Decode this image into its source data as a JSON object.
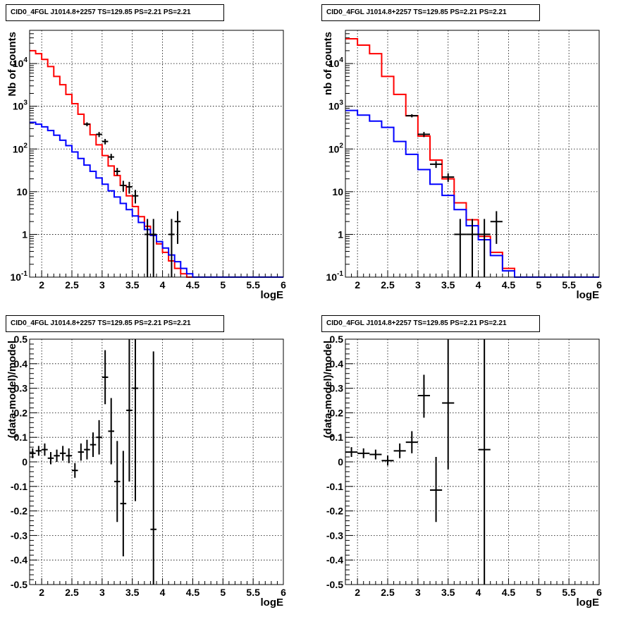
{
  "chart_data": [
    {
      "type": "line",
      "title": "CID0_4FGL J1014.8+2257 TS=129.85 PS=2.21 PS=2.21",
      "xlabel": "logE",
      "ylabel": "Nb of counts",
      "yscale": "log",
      "xlim": [
        1.8,
        6.0
      ],
      "ylim": [
        0.1,
        60000
      ],
      "x_ticks": [
        "2",
        "2.5",
        "3",
        "3.5",
        "4",
        "4.5",
        "5",
        "5.5",
        "6"
      ],
      "y_ticks": [
        "10^{-1}",
        "1",
        "10",
        "10^{2}",
        "10^{3}",
        "10^{4}"
      ],
      "grid": true,
      "bin_edges": [
        1.8,
        1.9,
        2.0,
        2.1,
        2.2,
        2.3,
        2.4,
        2.5,
        2.6,
        2.7,
        2.8,
        2.9,
        3.0,
        3.1,
        3.2,
        3.3,
        3.4,
        3.5,
        3.6,
        3.7,
        3.8,
        3.9,
        4.0,
        4.1,
        4.2,
        4.3,
        4.4,
        4.5,
        4.6,
        4.7,
        4.8,
        4.9,
        5.0,
        5.1,
        5.2,
        5.3,
        5.4,
        5.5,
        5.6,
        5.7,
        5.8,
        5.9,
        6.0
      ],
      "series": [
        {
          "color": "#ff0000",
          "style": "step",
          "values": [
            20000,
            17000,
            12500,
            8500,
            5000,
            3200,
            1900,
            1150,
            650,
            380,
            215,
            125,
            70,
            40,
            24,
            14,
            8,
            4.5,
            2.6,
            1.55,
            0.95,
            0.6,
            0.38,
            0.24,
            0.16,
            0.12,
            0.1,
            0.1,
            0.1,
            0.1,
            0.1,
            0.1,
            0.1,
            0.1,
            0.1,
            0.1,
            0.1,
            0.1,
            0.1,
            0.1,
            0.1,
            0.1
          ]
        },
        {
          "color": "#0000ff",
          "style": "step",
          "values": [
            420,
            380,
            330,
            270,
            210,
            160,
            120,
            85,
            60,
            42,
            30,
            21,
            15,
            10.5,
            7.5,
            5.3,
            3.8,
            2.7,
            1.9,
            1.3,
            0.95,
            0.68,
            0.48,
            0.33,
            0.23,
            0.16,
            0.12,
            0.1,
            0.1,
            0.1,
            0.1,
            0.1,
            0.1,
            0.1,
            0.1,
            0.1,
            0.1,
            0.1,
            0.1,
            0.1,
            0.1,
            0.1
          ]
        },
        {
          "color": "#000000",
          "style": "points",
          "points": [
            {
              "x": 2.75,
              "y": 380,
              "ylo": 340,
              "yhi": 420
            },
            {
              "x": 2.95,
              "y": 220,
              "ylo": 190,
              "yhi": 250
            },
            {
              "x": 3.05,
              "y": 150,
              "ylo": 128,
              "yhi": 172
            },
            {
              "x": 3.15,
              "y": 65,
              "ylo": 55,
              "yhi": 77
            },
            {
              "x": 3.25,
              "y": 30,
              "ylo": 24,
              "yhi": 36
            },
            {
              "x": 3.35,
              "y": 14,
              "ylo": 10,
              "yhi": 18
            },
            {
              "x": 3.45,
              "y": 13,
              "ylo": 9,
              "yhi": 17
            },
            {
              "x": 3.55,
              "y": 8,
              "ylo": 5.3,
              "yhi": 11
            },
            {
              "x": 3.75,
              "y": 1,
              "ylo": 0.1,
              "yhi": 2.3
            },
            {
              "x": 3.85,
              "y": 1,
              "ylo": 0.1,
              "yhi": 2.3
            },
            {
              "x": 4.15,
              "y": 1,
              "ylo": 0.1,
              "yhi": 2.3
            },
            {
              "x": 4.25,
              "y": 2,
              "ylo": 0.6,
              "yhi": 3.5
            }
          ]
        }
      ]
    },
    {
      "type": "line",
      "title": "CID0_4FGL J1014.8+2257 TS=129.85 PS=2.21 PS=2.21",
      "xlabel": "logE",
      "ylabel": "nb of counts",
      "yscale": "log",
      "xlim": [
        1.8,
        6.0
      ],
      "ylim": [
        0.1,
        60000
      ],
      "x_ticks": [
        "2",
        "2.5",
        "3",
        "3.5",
        "4",
        "4.5",
        "5",
        "5.5",
        "6"
      ],
      "y_ticks": [
        "10^{-1}",
        "1",
        "10",
        "10^{2}",
        "10^{3}",
        "10^{4}"
      ],
      "grid": true,
      "bin_edges": [
        1.8,
        2.0,
        2.2,
        2.4,
        2.6,
        2.8,
        3.0,
        3.2,
        3.4,
        3.6,
        3.8,
        4.0,
        4.2,
        4.4,
        4.6,
        4.8,
        5.0,
        5.2,
        5.4,
        5.6,
        5.8,
        6.0
      ],
      "series": [
        {
          "color": "#ff0000",
          "style": "step",
          "values": [
            38000,
            27000,
            17000,
            5000,
            1900,
            600,
            200,
            55,
            20,
            5.5,
            2.2,
            0.9,
            0.38,
            0.16,
            0.1,
            0.1,
            0.1,
            0.1,
            0.1,
            0.1,
            0.1
          ]
        },
        {
          "color": "#0000ff",
          "style": "step",
          "values": [
            800,
            620,
            450,
            320,
            150,
            75,
            33,
            15,
            8.2,
            3.8,
            1.6,
            0.75,
            0.32,
            0.14,
            0.1,
            0.1,
            0.1,
            0.1,
            0.1,
            0.1,
            0.1
          ]
        },
        {
          "color": "#000000",
          "style": "points",
          "points": [
            {
              "x": 2.9,
              "y": 600,
              "ylo": 550,
              "yhi": 650
            },
            {
              "x": 3.1,
              "y": 220,
              "ylo": 190,
              "yhi": 250
            },
            {
              "x": 3.3,
              "y": 44,
              "ylo": 36,
              "yhi": 52
            },
            {
              "x": 3.5,
              "y": 22,
              "ylo": 17,
              "yhi": 27
            },
            {
              "x": 3.7,
              "y": 1,
              "ylo": 0.1,
              "yhi": 2.3
            },
            {
              "x": 3.9,
              "y": 1,
              "ylo": 0.1,
              "yhi": 2.3
            },
            {
              "x": 4.1,
              "y": 1,
              "ylo": 0.1,
              "yhi": 2.3
            },
            {
              "x": 4.3,
              "y": 2,
              "ylo": 0.6,
              "yhi": 3.5
            }
          ]
        }
      ]
    },
    {
      "type": "scatter",
      "title": "CID0_4FGL J1014.8+2257 TS=129.85 PS=2.21 PS=2.21",
      "xlabel": "logE",
      "ylabel": "(data-model)/model",
      "yscale": "linear",
      "xlim": [
        1.8,
        6.0
      ],
      "ylim": [
        -0.5,
        0.5
      ],
      "x_ticks": [
        "2",
        "2.5",
        "3",
        "3.5",
        "4",
        "4.5",
        "5",
        "5.5",
        "6"
      ],
      "y_ticks": [
        "-0.5",
        "-0.4",
        "-0.3",
        "-0.2",
        "-0.1",
        "0",
        "0.1",
        "0.2",
        "0.3",
        "0.4",
        "0.5"
      ],
      "grid": true,
      "xerr": 0.05,
      "points": [
        {
          "x": 1.85,
          "y": 0.035,
          "ylo": 0.015,
          "yhi": 0.055
        },
        {
          "x": 1.95,
          "y": 0.045,
          "ylo": 0.025,
          "yhi": 0.065
        },
        {
          "x": 2.05,
          "y": 0.05,
          "ylo": 0.025,
          "yhi": 0.075
        },
        {
          "x": 2.15,
          "y": 0.015,
          "ylo": -0.01,
          "yhi": 0.04
        },
        {
          "x": 2.25,
          "y": 0.025,
          "ylo": 0.0,
          "yhi": 0.05
        },
        {
          "x": 2.35,
          "y": 0.035,
          "ylo": 0.005,
          "yhi": 0.065
        },
        {
          "x": 2.45,
          "y": 0.025,
          "ylo": -0.005,
          "yhi": 0.055
        },
        {
          "x": 2.55,
          "y": -0.035,
          "ylo": -0.065,
          "yhi": -0.005
        },
        {
          "x": 2.65,
          "y": 0.04,
          "ylo": 0.005,
          "yhi": 0.075
        },
        {
          "x": 2.75,
          "y": 0.05,
          "ylo": 0.01,
          "yhi": 0.09
        },
        {
          "x": 2.85,
          "y": 0.07,
          "ylo": 0.02,
          "yhi": 0.12
        },
        {
          "x": 2.95,
          "y": 0.1,
          "ylo": 0.03,
          "yhi": 0.17
        },
        {
          "x": 3.05,
          "y": 0.345,
          "ylo": 0.235,
          "yhi": 0.455
        },
        {
          "x": 3.15,
          "y": 0.125,
          "ylo": -0.01,
          "yhi": 0.26
        },
        {
          "x": 3.25,
          "y": -0.08,
          "ylo": -0.245,
          "yhi": 0.085
        },
        {
          "x": 3.35,
          "y": -0.17,
          "ylo": -0.385,
          "yhi": 0.045
        },
        {
          "x": 3.45,
          "y": 0.21,
          "ylo": -0.08,
          "yhi": 0.5
        },
        {
          "x": 3.55,
          "y": 0.3,
          "ylo": -0.16,
          "yhi": 0.5
        },
        {
          "x": 3.85,
          "y": -0.275,
          "ylo": -0.5,
          "yhi": 0.45
        }
      ]
    },
    {
      "type": "scatter",
      "title": "CID0_4FGL J1014.8+2257 TS=129.85 PS=2.21 PS=2.21",
      "xlabel": "logE",
      "ylabel": "(data-model)/model",
      "yscale": "linear",
      "xlim": [
        1.8,
        6.0
      ],
      "ylim": [
        -0.5,
        0.5
      ],
      "x_ticks": [
        "2",
        "2.5",
        "3",
        "3.5",
        "4",
        "4.5",
        "5",
        "5.5",
        "6"
      ],
      "y_ticks": [
        "-0.5",
        "-0.4",
        "-0.3",
        "-0.2",
        "-0.1",
        "0",
        "0.1",
        "0.2",
        "0.3",
        "0.4",
        "0.5"
      ],
      "grid": true,
      "xerr": 0.1,
      "points": [
        {
          "x": 1.9,
          "y": 0.04,
          "ylo": 0.02,
          "yhi": 0.06
        },
        {
          "x": 2.1,
          "y": 0.035,
          "ylo": 0.015,
          "yhi": 0.055
        },
        {
          "x": 2.3,
          "y": 0.03,
          "ylo": 0.01,
          "yhi": 0.05
        },
        {
          "x": 2.5,
          "y": 0.005,
          "ylo": -0.015,
          "yhi": 0.025
        },
        {
          "x": 2.7,
          "y": 0.045,
          "ylo": 0.015,
          "yhi": 0.075
        },
        {
          "x": 2.9,
          "y": 0.08,
          "ylo": 0.035,
          "yhi": 0.125
        },
        {
          "x": 3.1,
          "y": 0.27,
          "ylo": 0.18,
          "yhi": 0.355
        },
        {
          "x": 3.3,
          "y": -0.115,
          "ylo": -0.245,
          "yhi": 0.02
        },
        {
          "x": 3.5,
          "y": 0.24,
          "ylo": -0.03,
          "yhi": 0.5
        },
        {
          "x": 4.1,
          "y": 0.05,
          "ylo": -0.5,
          "yhi": 0.5
        }
      ]
    }
  ]
}
